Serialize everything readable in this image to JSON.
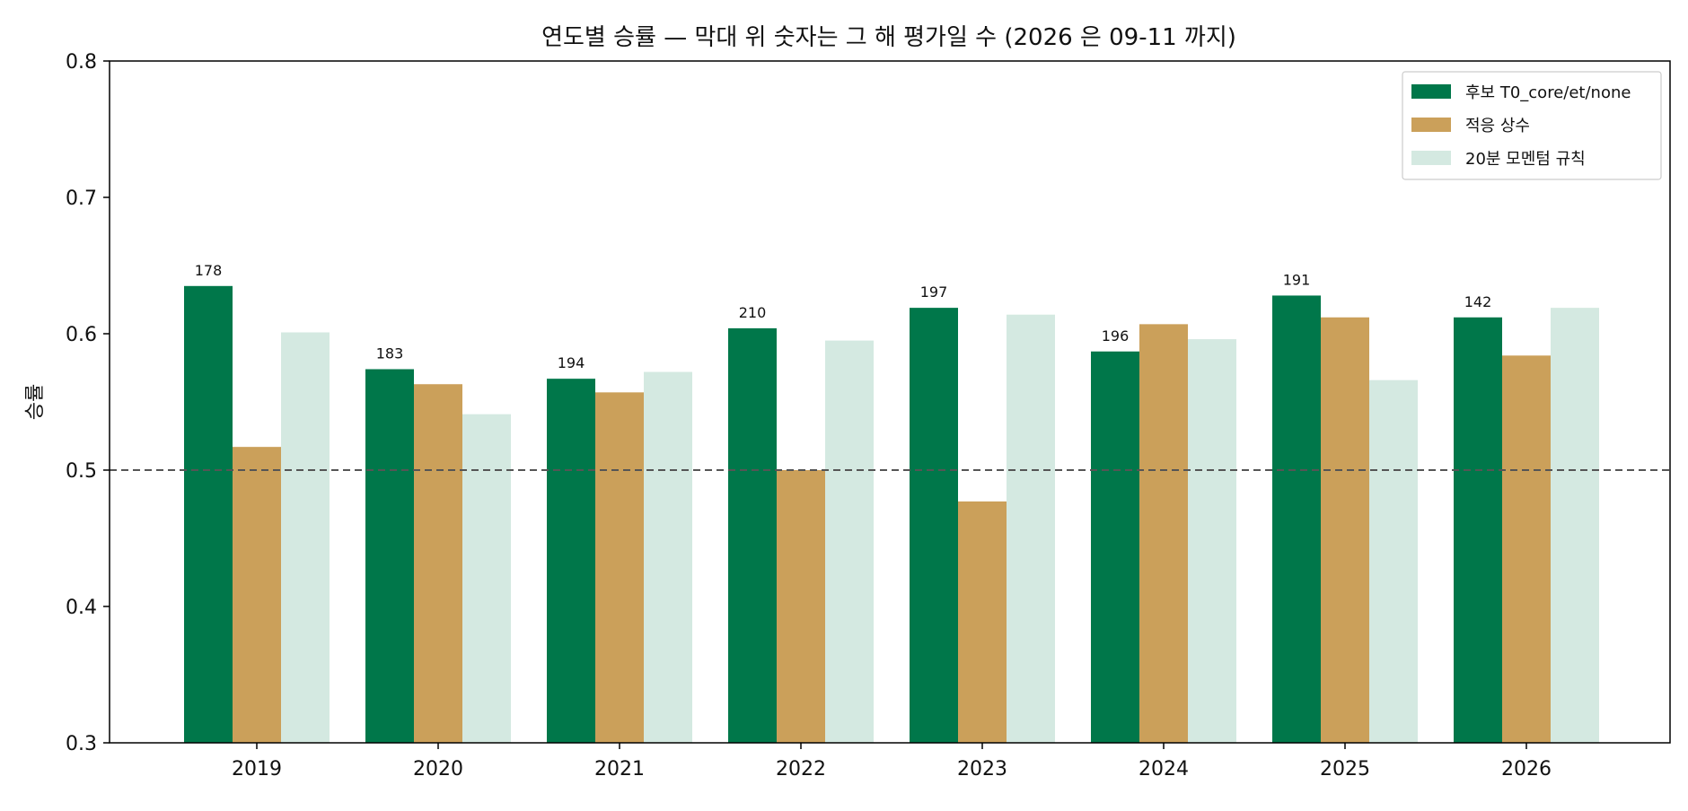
{
  "chart_data": {
    "type": "bar",
    "title": "연도별 승률 — 막대 위 숫자는 그 해 평가일 수 (2026 은 09-11 까지)",
    "xlabel": "",
    "ylabel": "승률",
    "categories": [
      "2019",
      "2020",
      "2021",
      "2022",
      "2023",
      "2024",
      "2025",
      "2026"
    ],
    "ylim": [
      0.3,
      0.8
    ],
    "yticks": [
      "0.3",
      "0.4",
      "0.5",
      "0.6",
      "0.7",
      "0.8"
    ],
    "reference_line": {
      "y": 0.5,
      "style": "dashed",
      "color": "#555555"
    },
    "series": [
      {
        "name": "후보 T0_core/et/none",
        "color": "#00774A",
        "values": [
          0.635,
          0.574,
          0.567,
          0.604,
          0.619,
          0.587,
          0.628,
          0.612
        ]
      },
      {
        "name": "적응 상수",
        "color": "#CBA05A",
        "values": [
          0.517,
          0.563,
          0.557,
          0.5,
          0.477,
          0.607,
          0.612,
          0.584
        ]
      },
      {
        "name": "20분 모멘텀 규칙",
        "color": "#D4E9E1",
        "values": [
          0.601,
          0.541,
          0.572,
          0.595,
          0.614,
          0.596,
          0.566,
          0.619
        ]
      }
    ],
    "bar_labels": [
      "178",
      "183",
      "194",
      "210",
      "197",
      "196",
      "191",
      "142"
    ],
    "legend_position": "top-right",
    "grid": false
  }
}
